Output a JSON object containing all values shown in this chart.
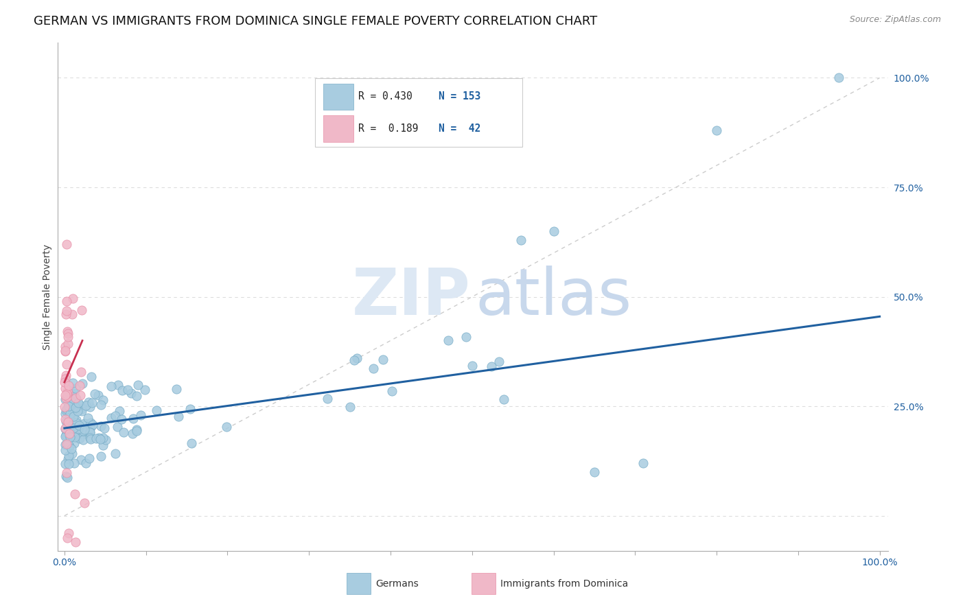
{
  "title": "GERMAN VS IMMIGRANTS FROM DOMINICA SINGLE FEMALE POVERTY CORRELATION CHART",
  "source_text": "Source: ZipAtlas.com",
  "ylabel": "Single Female Poverty",
  "blue_line_x": [
    0.0,
    1.0
  ],
  "blue_line_y": [
    0.2,
    0.455
  ],
  "pink_line_x": [
    0.0,
    0.022
  ],
  "pink_line_y": [
    0.305,
    0.4
  ],
  "diag_line_x": [
    0.0,
    1.0
  ],
  "diag_line_y": [
    0.0,
    1.0
  ],
  "ylim": [
    -0.08,
    1.08
  ],
  "xlim": [
    -0.008,
    1.01
  ],
  "yticks": [
    0.0,
    0.25,
    0.5,
    0.75,
    1.0
  ],
  "ytick_labels": [
    "",
    "25.0%",
    "50.0%",
    "75.0%",
    "100.0%"
  ],
  "xtick_labels_left": "0.0%",
  "xtick_labels_right": "100.0%",
  "blue_color": "#a8cce0",
  "blue_edge_color": "#7aaec8",
  "pink_color": "#f0b8c8",
  "pink_edge_color": "#e890a8",
  "blue_line_color": "#2060a0",
  "pink_line_color": "#c83050",
  "diag_line_color": "#cccccc",
  "grid_color": "#dddddd",
  "watermark_color_zip": "#dde8f4",
  "watermark_color_atlas": "#c8d8ec",
  "title_fontsize": 13,
  "axis_label_fontsize": 10,
  "tick_fontsize": 10,
  "source_fontsize": 9,
  "legend_R_blue": "0.430",
  "legend_N_blue": "153",
  "legend_R_pink": "0.189",
  "legend_N_pink": "42",
  "legend_label_blue": "Germans",
  "legend_label_pink": "Immigrants from Dominica"
}
